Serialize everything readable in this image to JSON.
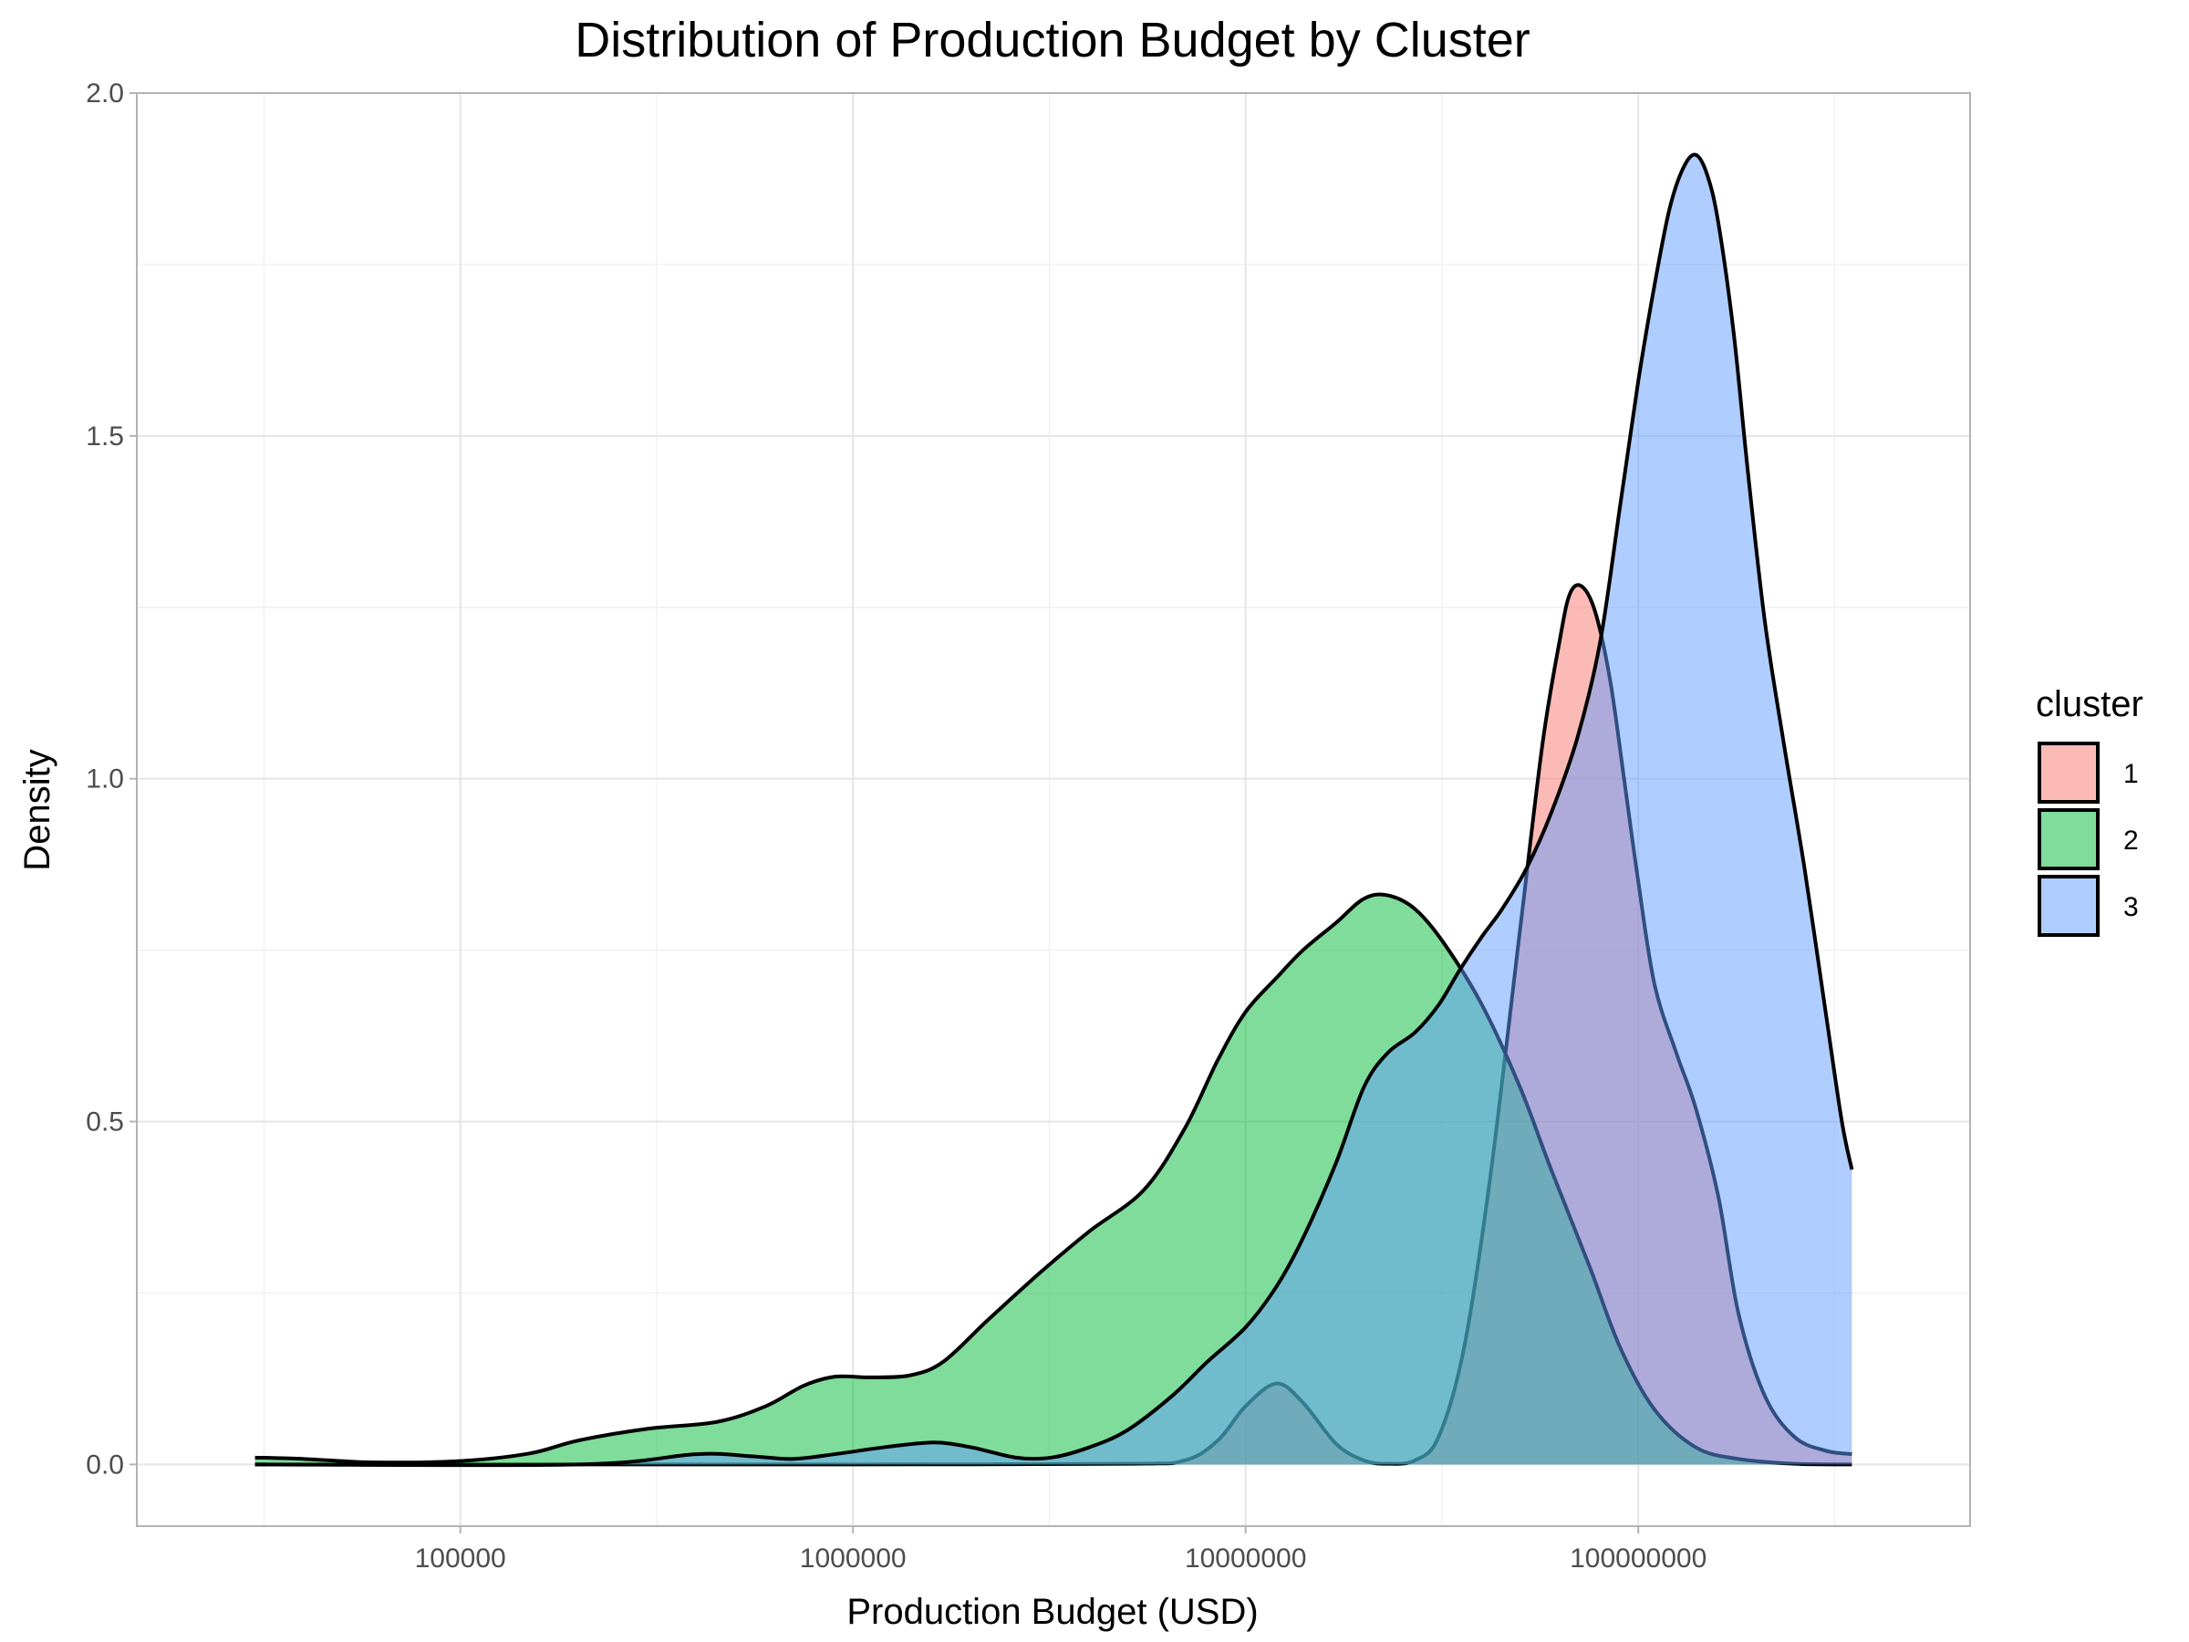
{
  "chart_data": {
    "type": "area",
    "subtype": "density",
    "title": "Distribution of Production Budget by Cluster",
    "xlabel": "Production Budget (USD)",
    "ylabel": "Density",
    "x_scale": "log10",
    "xlim": [
      15000,
      700000000
    ],
    "ylim": [
      -0.09,
      2.0
    ],
    "x_ticks": [
      100000,
      1000000,
      10000000,
      100000000
    ],
    "x_tick_labels": [
      "100000",
      "1000000",
      "10000000",
      "100000000"
    ],
    "y_ticks": [
      0.0,
      0.5,
      1.0,
      1.5,
      2.0
    ],
    "y_tick_labels": [
      "0.0",
      "0.5",
      "1.0",
      "1.5",
      "2.0"
    ],
    "grid": true,
    "legend": {
      "title": "cluster",
      "position": "right"
    },
    "series": [
      {
        "name": "1",
        "color": "#F8766D",
        "points": [
          [
            30000,
            0.0
          ],
          [
            300000,
            0.0
          ],
          [
            1000000,
            0.0
          ],
          [
            5000000,
            0.001
          ],
          [
            7000000,
            0.006
          ],
          [
            8500000,
            0.035
          ],
          [
            10000000,
            0.085
          ],
          [
            12000000,
            0.118
          ],
          [
            14000000,
            0.09
          ],
          [
            17000000,
            0.03
          ],
          [
            20000000,
            0.006
          ],
          [
            23000000,
            0.001
          ],
          [
            27000000,
            0.006
          ],
          [
            31000000,
            0.04
          ],
          [
            36000000,
            0.17
          ],
          [
            42000000,
            0.42
          ],
          [
            50000000,
            0.78
          ],
          [
            57000000,
            1.05
          ],
          [
            63000000,
            1.2
          ],
          [
            67000000,
            1.27
          ],
          [
            72000000,
            1.28
          ],
          [
            78000000,
            1.24
          ],
          [
            85000000,
            1.14
          ],
          [
            92000000,
            1.0
          ],
          [
            100000000,
            0.85
          ],
          [
            110000000,
            0.7
          ],
          [
            125000000,
            0.6
          ],
          [
            140000000,
            0.52
          ],
          [
            160000000,
            0.39
          ],
          [
            180000000,
            0.22
          ],
          [
            210000000,
            0.1
          ],
          [
            250000000,
            0.04
          ],
          [
            300000000,
            0.02
          ],
          [
            350000000,
            0.015
          ]
        ]
      },
      {
        "name": "2",
        "color": "#00BA38",
        "points": [
          [
            30000,
            0.01
          ],
          [
            40000,
            0.008
          ],
          [
            60000,
            0.003
          ],
          [
            100000,
            0.005
          ],
          [
            150000,
            0.016
          ],
          [
            200000,
            0.035
          ],
          [
            300000,
            0.052
          ],
          [
            450000,
            0.062
          ],
          [
            600000,
            0.085
          ],
          [
            750000,
            0.115
          ],
          [
            900000,
            0.128
          ],
          [
            1100000,
            0.127
          ],
          [
            1400000,
            0.13
          ],
          [
            1700000,
            0.15
          ],
          [
            2200000,
            0.21
          ],
          [
            3000000,
            0.28
          ],
          [
            4000000,
            0.34
          ],
          [
            5500000,
            0.4
          ],
          [
            7000000,
            0.49
          ],
          [
            8500000,
            0.59
          ],
          [
            10000000,
            0.66
          ],
          [
            12000000,
            0.71
          ],
          [
            14000000,
            0.75
          ],
          [
            17000000,
            0.79
          ],
          [
            20000000,
            0.825
          ],
          [
            23000000,
            0.83
          ],
          [
            27000000,
            0.81
          ],
          [
            32000000,
            0.76
          ],
          [
            40000000,
            0.67
          ],
          [
            50000000,
            0.55
          ],
          [
            60000000,
            0.43
          ],
          [
            75000000,
            0.29
          ],
          [
            90000000,
            0.17
          ],
          [
            110000000,
            0.08
          ],
          [
            140000000,
            0.025
          ],
          [
            180000000,
            0.008
          ],
          [
            250000000,
            0.001
          ],
          [
            350000000,
            0.0
          ]
        ]
      },
      {
        "name": "3",
        "color": "#619CFF",
        "points": [
          [
            30000,
            0.0
          ],
          [
            200000,
            0.0
          ],
          [
            400000,
            0.015
          ],
          [
            550000,
            0.012
          ],
          [
            700000,
            0.008
          ],
          [
            900000,
            0.015
          ],
          [
            1200000,
            0.025
          ],
          [
            1600000,
            0.032
          ],
          [
            2000000,
            0.025
          ],
          [
            2600000,
            0.01
          ],
          [
            3200000,
            0.01
          ],
          [
            4000000,
            0.025
          ],
          [
            5000000,
            0.05
          ],
          [
            6500000,
            0.1
          ],
          [
            8000000,
            0.15
          ],
          [
            10000000,
            0.2
          ],
          [
            12000000,
            0.26
          ],
          [
            14000000,
            0.33
          ],
          [
            17000000,
            0.44
          ],
          [
            20000000,
            0.55
          ],
          [
            23000000,
            0.6
          ],
          [
            27000000,
            0.63
          ],
          [
            31000000,
            0.67
          ],
          [
            35000000,
            0.72
          ],
          [
            40000000,
            0.77
          ],
          [
            45000000,
            0.81
          ],
          [
            52000000,
            0.87
          ],
          [
            60000000,
            0.95
          ],
          [
            70000000,
            1.06
          ],
          [
            80000000,
            1.2
          ],
          [
            90000000,
            1.4
          ],
          [
            100000000,
            1.58
          ],
          [
            110000000,
            1.72
          ],
          [
            120000000,
            1.83
          ],
          [
            130000000,
            1.89
          ],
          [
            140000000,
            1.91
          ],
          [
            150000000,
            1.88
          ],
          [
            160000000,
            1.81
          ],
          [
            175000000,
            1.65
          ],
          [
            190000000,
            1.45
          ],
          [
            210000000,
            1.23
          ],
          [
            235000000,
            1.05
          ],
          [
            265000000,
            0.87
          ],
          [
            300000000,
            0.66
          ],
          [
            330000000,
            0.5
          ],
          [
            350000000,
            0.43
          ]
        ]
      }
    ]
  }
}
